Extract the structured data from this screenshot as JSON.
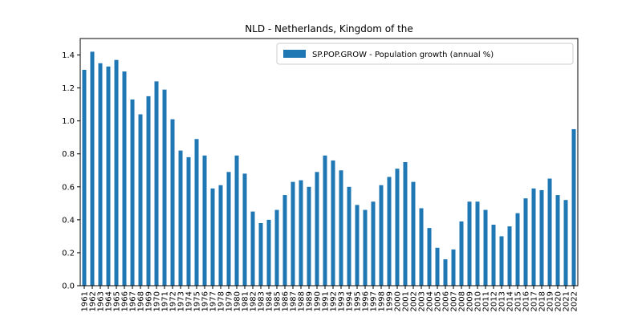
{
  "chart_data": {
    "type": "bar",
    "title": "NLD - Netherlands, Kingdom of the",
    "xlabel": "",
    "ylabel": "",
    "ylim": [
      0,
      1.5
    ],
    "yticks": [
      "0.0",
      "0.2",
      "0.4",
      "0.6",
      "0.8",
      "1.0",
      "1.2",
      "1.4"
    ],
    "grid": false,
    "legend_position": "top-right",
    "categories": [
      "1961",
      "1962",
      "1963",
      "1964",
      "1965",
      "1966",
      "1967",
      "1968",
      "1969",
      "1970",
      "1971",
      "1972",
      "1973",
      "1974",
      "1975",
      "1976",
      "1977",
      "1978",
      "1979",
      "1980",
      "1981",
      "1982",
      "1983",
      "1984",
      "1985",
      "1986",
      "1987",
      "1988",
      "1989",
      "1990",
      "1991",
      "1992",
      "1993",
      "1994",
      "1995",
      "1996",
      "1997",
      "1998",
      "1999",
      "2000",
      "2001",
      "2002",
      "2003",
      "2004",
      "2005",
      "2006",
      "2007",
      "2008",
      "2009",
      "2010",
      "2011",
      "2012",
      "2013",
      "2014",
      "2015",
      "2016",
      "2017",
      "2018",
      "2019",
      "2020",
      "2021",
      "2022"
    ],
    "series": [
      {
        "name": "SP.POP.GROW - Population growth (annual %)",
        "color": "#1f77b4",
        "values": [
          1.31,
          1.42,
          1.35,
          1.33,
          1.37,
          1.3,
          1.13,
          1.04,
          1.15,
          1.24,
          1.19,
          1.01,
          0.82,
          0.78,
          0.89,
          0.79,
          0.59,
          0.61,
          0.69,
          0.79,
          0.68,
          0.45,
          0.38,
          0.4,
          0.46,
          0.55,
          0.63,
          0.64,
          0.6,
          0.69,
          0.79,
          0.76,
          0.7,
          0.6,
          0.49,
          0.46,
          0.51,
          0.61,
          0.66,
          0.71,
          0.75,
          0.63,
          0.47,
          0.35,
          0.23,
          0.16,
          0.22,
          0.39,
          0.51,
          0.51,
          0.46,
          0.37,
          0.3,
          0.36,
          0.44,
          0.53,
          0.59,
          0.58,
          0.65,
          0.55,
          0.52,
          0.95
        ]
      }
    ]
  }
}
